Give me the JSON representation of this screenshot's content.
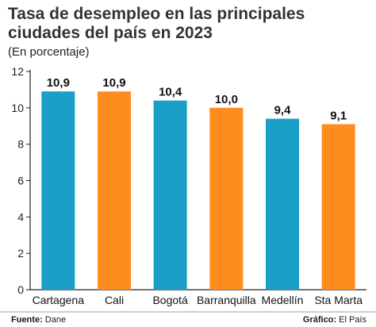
{
  "title": "Tasa de desempleo en las principales ciudades del país en 2023",
  "subtitle": "(En porcentaje)",
  "footer": {
    "source_label": "Fuente:",
    "source_value": "Dane",
    "credit_label": "Gráfico:",
    "credit_value": "El País"
  },
  "colors": {
    "blue": "#1aa0c8",
    "orange": "#ff8c1f"
  },
  "chart_data": {
    "type": "bar",
    "categories": [
      "Cartagena",
      "Cali",
      "Bogotá",
      "Barranquilla",
      "Medellín",
      "Sta Marta"
    ],
    "values": [
      10.9,
      10.9,
      10.4,
      10.0,
      9.4,
      9.1
    ],
    "value_labels": [
      "10,9",
      "10,9",
      "10,4",
      "10,0",
      "9,4",
      "9,1"
    ],
    "bar_colors": [
      "#1aa0c8",
      "#ff8c1f",
      "#1aa0c8",
      "#ff8c1f",
      "#1aa0c8",
      "#ff8c1f"
    ],
    "ylim": [
      0,
      12
    ],
    "yticks": [
      0,
      2,
      4,
      6,
      8,
      10,
      12
    ],
    "grid": false
  }
}
